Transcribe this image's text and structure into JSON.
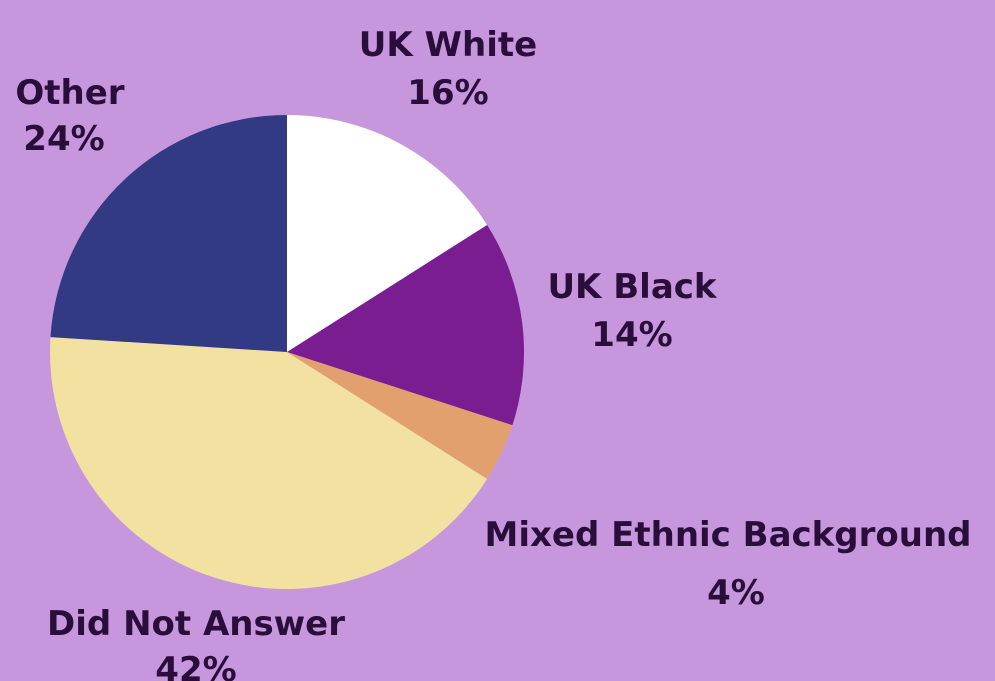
{
  "colors": {
    "background": "#c797de"
  },
  "chart_data": {
    "type": "pie",
    "start_angle_deg": 0,
    "direction": "clockwise",
    "slices": [
      {
        "label": "UK White",
        "value": 16,
        "value_label": "16%",
        "color": "#ffffff"
      },
      {
        "label": "UK Black",
        "value": 14,
        "value_label": "14%",
        "color": "#7a1d91"
      },
      {
        "label": "Mixed Ethnic Background",
        "value": 4,
        "value_label": "4%",
        "color": "#e3a06f"
      },
      {
        "label": "Did Not Answer",
        "value": 42,
        "value_label": "42%",
        "color": "#f2e1a0"
      },
      {
        "label": "Other",
        "value": 24,
        "value_label": "24%",
        "color": "#333a84"
      }
    ]
  }
}
